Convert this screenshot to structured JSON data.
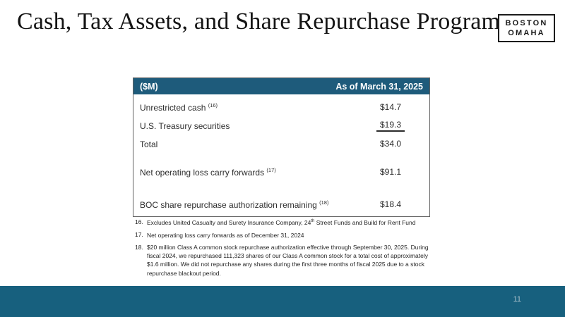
{
  "colors": {
    "accent": "#1E5B7B",
    "footer_bar": "#17607E",
    "page_number": "#A9C0CB"
  },
  "slide": {
    "title": "Cash, Tax Assets, and Share Repurchase Program",
    "page_number": "11"
  },
  "logo": {
    "line1": "BOSTON",
    "line2": "OMAHA"
  },
  "table": {
    "header_left": "($M)",
    "header_right": "As of March 31, 2025",
    "rows": [
      {
        "label": "Unrestricted cash ",
        "sup": "(16)",
        "value": "$14.7"
      },
      {
        "label": "U.S. Treasury securities",
        "sup": "",
        "value": "$19.3"
      },
      {
        "label": "Total",
        "sup": "",
        "value": "$34.0"
      },
      {
        "label": "Net operating loss carry forwards ",
        "sup": "(17)",
        "value": "$91.1"
      },
      {
        "label": "BOC share repurchase authorization remaining ",
        "sup": "(18)",
        "value": "$18.4"
      }
    ]
  },
  "footnotes": [
    {
      "num": "16.",
      "pre": "Excludes United Casualty and Surety Insurance Company, 24",
      "sup": "th",
      "post": " Street Funds and Build for Rent Fund"
    },
    {
      "num": "17.",
      "pre": "Net operating loss carry forwards as of December 31, 2024",
      "sup": "",
      "post": ""
    },
    {
      "num": "18.",
      "pre": "$20 million Class A common stock repurchase authorization effective through September 30, 2025. During fiscal 2024, we repurchased 111,323 shares of our Class A common stock for a total cost of approximately $1.6 million. We did not repurchase any shares during the first three months of fiscal 2025 due to a stock repurchase blackout period.",
      "sup": "",
      "post": ""
    }
  ]
}
